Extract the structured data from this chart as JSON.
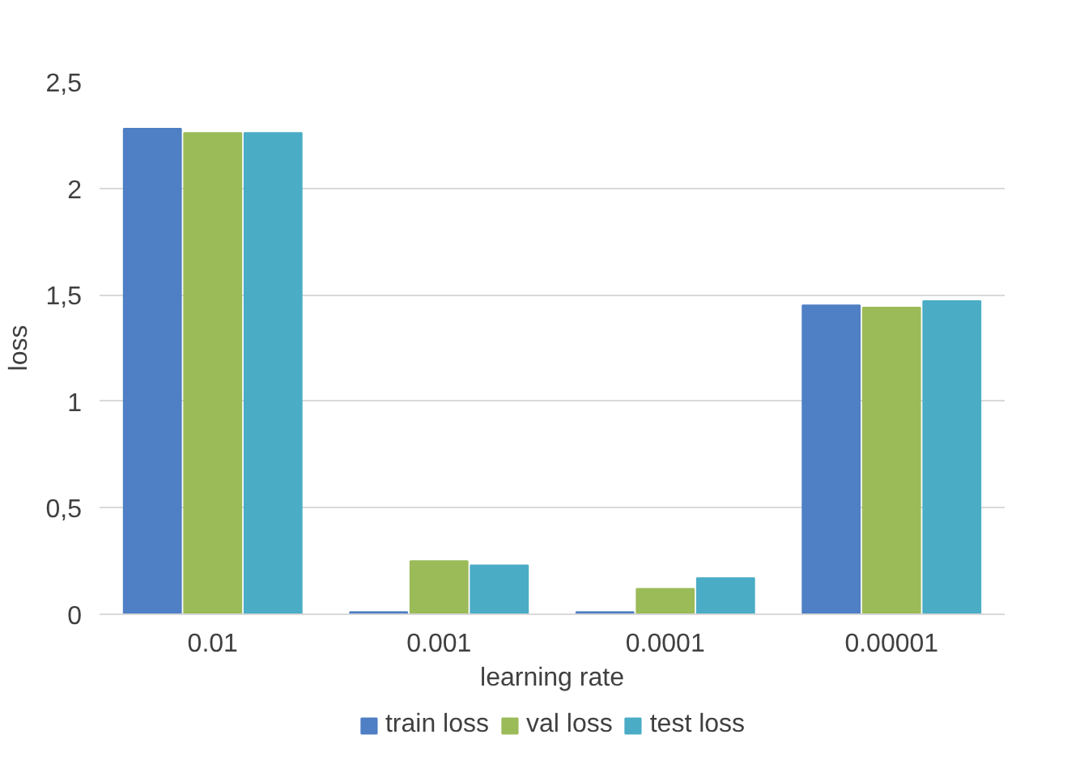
{
  "chart_data": {
    "type": "bar",
    "xlabel": "learning rate",
    "ylabel": "loss",
    "categories": [
      "0.01",
      "0.001",
      "0.0001",
      "0.00001"
    ],
    "series": [
      {
        "name": "train loss",
        "color": "#4f7fc4",
        "values": [
          2.28,
          0.01,
          0.01,
          1.45
        ]
      },
      {
        "name": "val loss",
        "color": "#9bbb59",
        "values": [
          2.26,
          0.25,
          0.12,
          1.44
        ]
      },
      {
        "name": "test loss",
        "color": "#4bacc6",
        "values": [
          2.26,
          0.23,
          0.17,
          1.47
        ]
      }
    ],
    "ylim": [
      0,
      2.5
    ],
    "yticks": [
      0,
      {
        "value": 0.5,
        "label": "0,5"
      },
      1,
      {
        "value": 1.5,
        "label": "1,5"
      },
      2,
      {
        "value": 2.5,
        "label": "2,5"
      }
    ],
    "grid": "y",
    "legend": "bottom"
  }
}
